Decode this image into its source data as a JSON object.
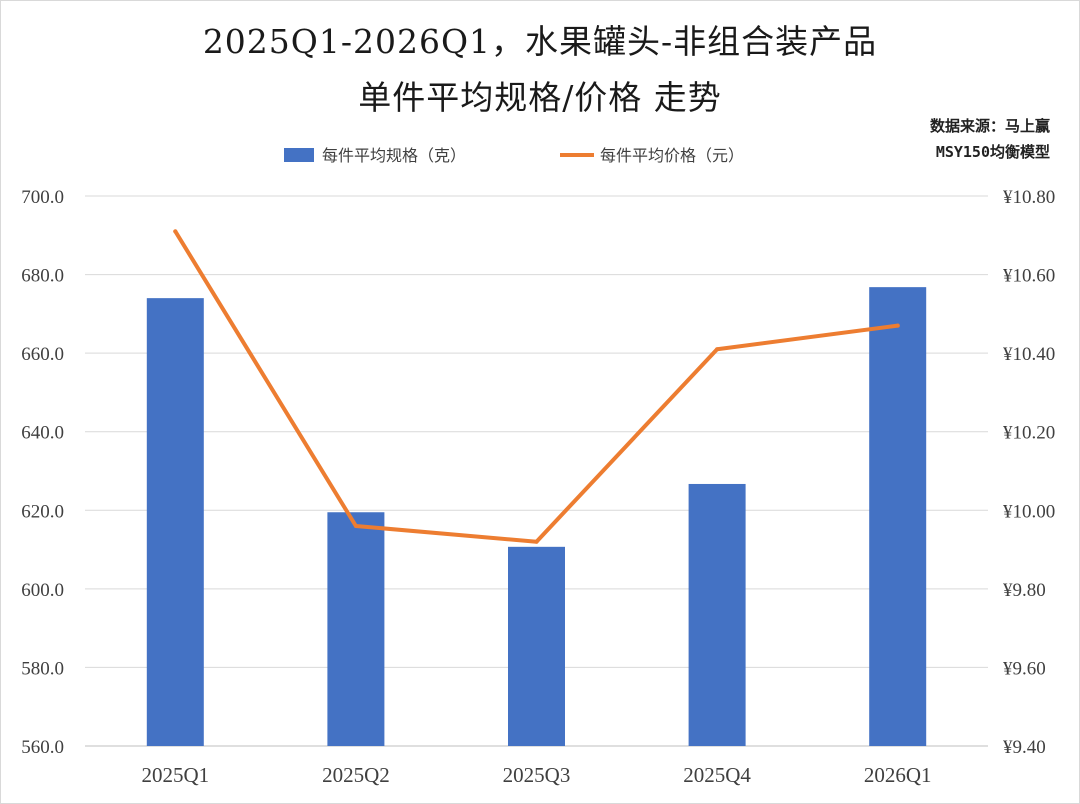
{
  "title_line1": "2025Q1-2026Q1，水果罐头-非组合装产品",
  "title_line2": "单件平均规格/价格 走势",
  "source_line1": "数据来源：马上赢",
  "source_line2": "MSY150均衡模型",
  "chart_data": {
    "type": "bar+line",
    "categories": [
      "2025Q1",
      "2025Q2",
      "2025Q3",
      "2025Q4",
      "2026Q1"
    ],
    "series": [
      {
        "name": "每件平均规格（克）",
        "type": "bar",
        "axis": "left",
        "color": "#4472C4",
        "values": [
          674.0,
          619.5,
          610.7,
          626.7,
          676.8
        ]
      },
      {
        "name": "每件平均价格（元）",
        "type": "line",
        "axis": "right",
        "color": "#ED7D31",
        "values": [
          10.71,
          9.96,
          9.92,
          10.41,
          10.47
        ]
      }
    ],
    "y_left": {
      "min": 560,
      "max": 700,
      "step": 20,
      "tick_labels": [
        "560.0",
        "580.0",
        "600.0",
        "620.0",
        "640.0",
        "660.0",
        "680.0",
        "700.0"
      ]
    },
    "y_right": {
      "min": 9.4,
      "max": 10.8,
      "step": 0.2,
      "tick_labels": [
        "¥9.40",
        "¥9.60",
        "¥9.80",
        "¥10.00",
        "¥10.20",
        "¥10.40",
        "¥10.60",
        "¥10.80"
      ]
    },
    "grid": true,
    "legend_position": "top"
  }
}
